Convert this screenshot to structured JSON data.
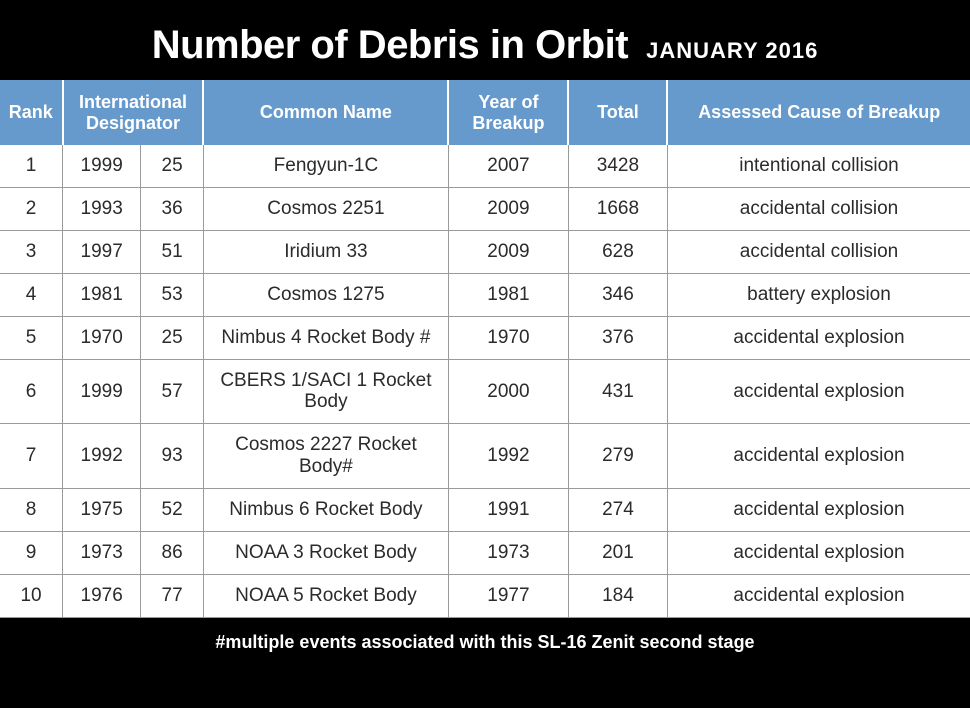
{
  "header": {
    "title": "Number of Debris in Orbit",
    "subtitle": "JANUARY 2016"
  },
  "table": {
    "columns": {
      "rank": "Rank",
      "designator": "International Designator",
      "common_name": "Common Name",
      "year_breakup": "Year of Breakup",
      "total": "Total",
      "cause": "Assessed Cause of Breakup"
    },
    "header_bg": "#6699cc",
    "header_fg": "#ffffff",
    "rows": [
      {
        "rank": "1",
        "desig_a": "1999",
        "desig_b": "25",
        "name": "Fengyun-1C",
        "year": "2007",
        "total": "3428",
        "cause": "intentional collision"
      },
      {
        "rank": "2",
        "desig_a": "1993",
        "desig_b": "36",
        "name": "Cosmos 2251",
        "year": "2009",
        "total": "1668",
        "cause": "accidental collision"
      },
      {
        "rank": "3",
        "desig_a": "1997",
        "desig_b": "51",
        "name": "Iridium 33",
        "year": "2009",
        "total": "628",
        "cause": "accidental collision"
      },
      {
        "rank": "4",
        "desig_a": "1981",
        "desig_b": "53",
        "name": "Cosmos 1275",
        "year": "1981",
        "total": "346",
        "cause": "battery explosion"
      },
      {
        "rank": "5",
        "desig_a": "1970",
        "desig_b": "25",
        "name": "Nimbus 4 Rocket Body #",
        "year": "1970",
        "total": "376",
        "cause": "accidental explosion"
      },
      {
        "rank": "6",
        "desig_a": "1999",
        "desig_b": "57",
        "name": "CBERS 1/SACI 1 Rocket Body",
        "year": "2000",
        "total": "431",
        "cause": "accidental explosion"
      },
      {
        "rank": "7",
        "desig_a": "1992",
        "desig_b": "93",
        "name": "Cosmos 2227 Rocket Body#",
        "year": "1992",
        "total": "279",
        "cause": "accidental explosion"
      },
      {
        "rank": "8",
        "desig_a": "1975",
        "desig_b": "52",
        "name": "Nimbus 6 Rocket Body",
        "year": "1991",
        "total": "274",
        "cause": "accidental explosion"
      },
      {
        "rank": "9",
        "desig_a": "1973",
        "desig_b": "86",
        "name": "NOAA 3 Rocket Body",
        "year": "1973",
        "total": "201",
        "cause": "accidental explosion"
      },
      {
        "rank": "10",
        "desig_a": "1976",
        "desig_b": "77",
        "name": "NOAA 5 Rocket Body",
        "year": "1977",
        "total": "184",
        "cause": "accidental explosion"
      }
    ]
  },
  "footnote": "#multiple events associated with this SL-16 Zenit second stage",
  "colors": {
    "page_bg": "#000000",
    "table_bg": "#ffffff",
    "text": "#2b2b2b",
    "border": "#9a9a9a"
  }
}
